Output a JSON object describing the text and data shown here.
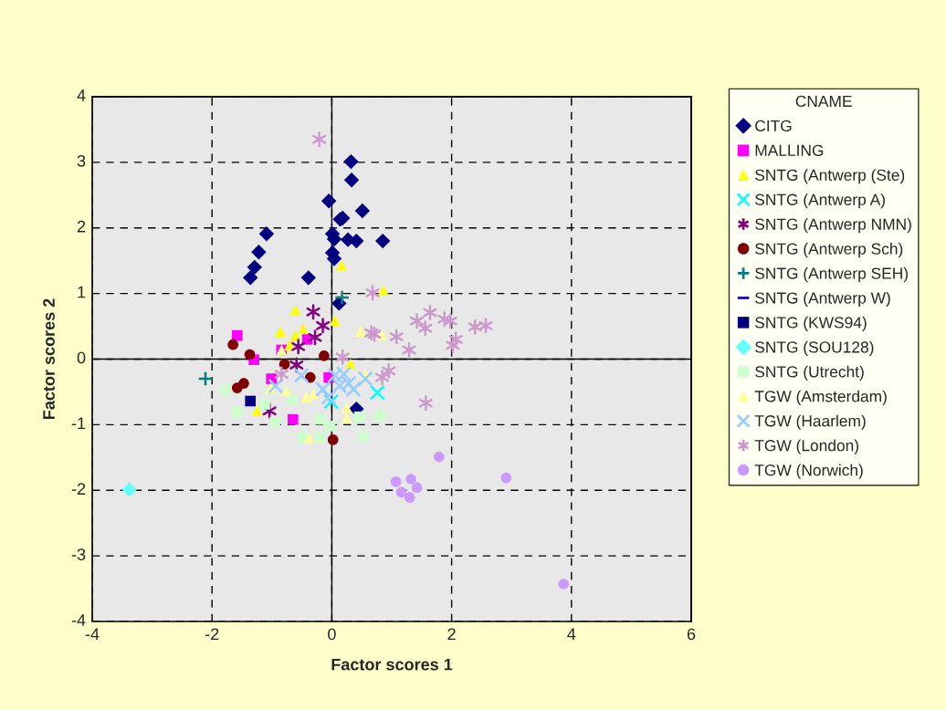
{
  "chart_data": {
    "type": "scatter",
    "xlabel": "Factor scores 1",
    "ylabel": "Factor scores 2",
    "legend_title": "CNAME",
    "xlim": [
      -4,
      6
    ],
    "ylim": [
      -4,
      4
    ],
    "xticks": [
      -4,
      -2,
      0,
      2,
      4,
      6
    ],
    "yticks": [
      -4,
      -3,
      -2,
      -1,
      0,
      1,
      2,
      3,
      4
    ],
    "grid": true,
    "legend": "right",
    "series": [
      {
        "name": "CITG",
        "color": "#000080",
        "marker": "diamond",
        "x": [
          0.32,
          0.33,
          -0.05,
          0.51,
          0.18,
          0.14,
          -1.09,
          0.01,
          0.04,
          0.27,
          0.41,
          0.85,
          -1.22,
          0.01,
          0.04,
          -1.29,
          -1.36,
          -0.39,
          0.12,
          0.41
        ],
        "values": [
          3.01,
          2.73,
          2.41,
          2.26,
          2.15,
          2.13,
          1.91,
          1.91,
          1.83,
          1.82,
          1.8,
          1.8,
          1.63,
          1.62,
          1.53,
          1.4,
          1.24,
          1.24,
          0.85,
          -0.76
        ]
      },
      {
        "name": "MALLING",
        "color": "#ff00ff",
        "marker": "square",
        "x": [
          -1.58,
          -1.3,
          -1.01,
          -0.65,
          -0.84,
          -0.41,
          -0.05
        ],
        "values": [
          0.36,
          -0.01,
          -0.3,
          -0.92,
          0.14,
          0.3,
          -0.28
        ]
      },
      {
        "name": "SNTG (Antwerp (Ste)",
        "color": "#ffff00",
        "marker": "triangle",
        "x": [
          0.16,
          0.86,
          -0.61,
          0.05,
          -0.86,
          -0.48,
          -0.61,
          -0.71,
          0.31,
          -1.25
        ],
        "values": [
          1.43,
          1.05,
          0.75,
          0.59,
          0.42,
          0.46,
          0.36,
          0.21,
          -0.07,
          -0.79
        ]
      },
      {
        "name": "SNTG (Antwerp A)",
        "color": "#00ffff",
        "marker": "cross",
        "x": [
          0.76,
          -0.01
        ],
        "values": [
          -0.51,
          -0.65
        ]
      },
      {
        "name": "SNTG (Antwerp NMN)",
        "color": "#800080",
        "x": [
          -0.31,
          -0.15,
          -0.28,
          -0.56,
          -0.59,
          -1.04
        ],
        "values": [
          0.72,
          0.51,
          0.33,
          0.19,
          -0.09,
          -0.79
        ]
      },
      {
        "name": "SNTG (Antwerp Sch)",
        "color": "#800000",
        "marker": "circle",
        "x": [
          -1.65,
          -1.37,
          -0.13,
          -0.79,
          -0.36,
          -1.47,
          -1.58,
          0.02
        ],
        "values": [
          0.22,
          0.07,
          0.05,
          -0.08,
          -0.28,
          -0.37,
          -0.44,
          -1.23
        ]
      },
      {
        "name": "SNTG (Antwerp SEH)",
        "color": "#008080",
        "marker": "plus",
        "x": [
          0.17,
          -2.11
        ],
        "values": [
          0.94,
          -0.3
        ]
      },
      {
        "name": "SNTG (Antwerp W)",
        "color": "#0000ff",
        "marker": "dash"
      },
      {
        "name": "SNTG (KWS94)",
        "color": "#000080",
        "marker": "square",
        "x": [
          -1.36
        ],
        "values": [
          -0.64
        ]
      },
      {
        "name": "SNTG (SOU128)",
        "color": "#66ffff",
        "marker": "diamond",
        "x": [
          -3.38
        ],
        "values": [
          -1.99
        ]
      },
      {
        "name": "SNTG (Utrecht)",
        "color": "#ccffcc",
        "marker": "square",
        "x": [
          -1.78,
          -1.59,
          -0.95,
          -0.66,
          -0.48,
          -0.2,
          -0.03,
          -0.2,
          0.46,
          0.53,
          0.8,
          -1.12
        ],
        "values": [
          -0.46,
          -0.81,
          -0.96,
          -0.62,
          -1.2,
          -0.92,
          -1.02,
          -1.2,
          -0.88,
          -1.18,
          -0.86,
          -0.69
        ]
      },
      {
        "name": "TGW (Amsterdam)",
        "color": "#ffff99",
        "marker": "triangle",
        "x": [
          -0.84,
          0.48,
          0.84,
          -1.02,
          -0.76,
          -0.43,
          -0.31,
          0.56,
          0.25,
          0.25,
          -0.38
        ],
        "values": [
          0.14,
          0.42,
          0.37,
          -0.44,
          -0.48,
          -0.58,
          -0.53,
          -0.23,
          -0.74,
          -0.9,
          -1.2
        ]
      },
      {
        "name": "TGW (Haarlem)",
        "color": "#99ccff",
        "marker": "cross",
        "x": [
          -0.94,
          -0.51,
          -0.15,
          0.05,
          0.2,
          0.28,
          0.13,
          0.56,
          -0.05,
          0.36
        ],
        "values": [
          -0.41,
          -0.25,
          -0.46,
          -0.25,
          -0.23,
          -0.37,
          -0.41,
          -0.3,
          -0.58,
          -0.46
        ]
      },
      {
        "name": "TGW (London)",
        "color": "#cc99cc",
        "x": [
          -0.21,
          0.68,
          0.66,
          0.71,
          1.08,
          1.42,
          1.64,
          1.56,
          1.29,
          1.88,
          1.98,
          2.07,
          2.02,
          2.39,
          2.57,
          0.84,
          0.95,
          1.57,
          0.18,
          -0.84
        ],
        "values": [
          3.35,
          1.01,
          0.4,
          0.38,
          0.34,
          0.58,
          0.71,
          0.47,
          0.14,
          0.61,
          0.58,
          0.3,
          0.21,
          0.49,
          0.51,
          -0.28,
          -0.18,
          -0.67,
          0.03,
          -0.23
        ]
      },
      {
        "name": "TGW (Norwich)",
        "color": "#cc99ff",
        "marker": "circle",
        "x": [
          1.79,
          1.07,
          1.32,
          1.42,
          1.16,
          1.3,
          2.91,
          3.87
        ],
        "values": [
          -1.49,
          -1.87,
          -1.83,
          -1.96,
          -2.03,
          -2.11,
          -1.81,
          -3.43
        ]
      }
    ]
  }
}
